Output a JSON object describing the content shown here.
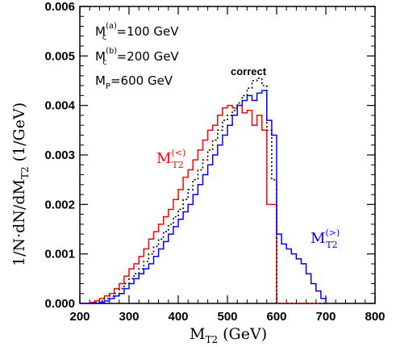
{
  "chart_data": {
    "type": "line",
    "title": "",
    "xlabel": {
      "main": "M",
      "sub": "T2",
      "unit": " (GeV)"
    },
    "ylabel": {
      "main": "1/N·dN/dM",
      "sub": "T2",
      "unit": "  (1/GeV)"
    },
    "xlim": [
      200,
      800
    ],
    "ylim": [
      0,
      0.006
    ],
    "xticks": [
      "200",
      "300",
      "400",
      "500",
      "600",
      "700",
      "800"
    ],
    "yticks": [
      "0.000",
      "0.001",
      "0.002",
      "0.003",
      "0.004",
      "0.005",
      "0.006"
    ],
    "annotations": [
      {
        "main": "M",
        "sup": "(a)",
        "sub": "c",
        "text": "=100  GeV"
      },
      {
        "main": "M",
        "sup": "(b)",
        "sub": "c",
        "text": "=200  GeV"
      },
      {
        "main": "M",
        "sup": "",
        "sub": "P",
        "text": "=600  GeV"
      }
    ],
    "bin_edges": [
      200,
      210,
      220,
      230,
      240,
      250,
      260,
      270,
      280,
      290,
      300,
      310,
      320,
      330,
      340,
      350,
      360,
      370,
      380,
      390,
      400,
      410,
      420,
      430,
      440,
      450,
      460,
      470,
      480,
      490,
      500,
      510,
      520,
      530,
      540,
      550,
      560,
      570,
      580,
      590,
      600,
      610,
      620,
      630,
      640,
      650,
      660,
      670,
      680,
      690,
      700
    ],
    "series": [
      {
        "name": "M_T2^(<)",
        "label": {
          "main": "M",
          "sup": "(<)",
          "sub": "T2"
        },
        "color": "#ff0000",
        "style": "solid",
        "values": [
          0,
          0,
          2e-05,
          5e-05,
          0.0001,
          0.00015,
          0.0002,
          0.0003,
          0.0004,
          0.00055,
          0.0007,
          0.0008,
          0.00095,
          0.0011,
          0.0013,
          0.00145,
          0.0016,
          0.00175,
          0.0019,
          0.0021,
          0.0023,
          0.00255,
          0.0027,
          0.0029,
          0.0031,
          0.0033,
          0.0035,
          0.0036,
          0.0038,
          0.00395,
          0.004,
          0.00395,
          0.004,
          0.00385,
          0.0039,
          0.0036,
          0.0038,
          0.0035,
          0.002,
          0.002,
          0,
          0,
          0,
          0,
          0,
          0,
          0,
          0,
          0,
          0
        ]
      },
      {
        "name": "correct",
        "label": {
          "main": "correct",
          "sup": "",
          "sub": ""
        },
        "color": "#000000",
        "style": "dotted",
        "values": [
          0,
          0,
          0,
          2e-05,
          5e-05,
          0.0001,
          0.00015,
          0.0002,
          0.0003,
          0.0004,
          0.0005,
          0.0006,
          0.0007,
          0.00085,
          0.001,
          0.00115,
          0.0013,
          0.00145,
          0.0016,
          0.00175,
          0.0019,
          0.0021,
          0.0023,
          0.0025,
          0.0027,
          0.0029,
          0.0031,
          0.0033,
          0.0035,
          0.0037,
          0.0038,
          0.0039,
          0.00405,
          0.0042,
          0.00435,
          0.0045,
          0.00455,
          0.0044,
          0.0035,
          0.0025,
          0,
          0,
          0,
          0,
          0,
          0,
          0,
          0,
          0,
          0
        ]
      },
      {
        "name": "M_T2^(>)",
        "label": {
          "main": "M",
          "sup": "(>)",
          "sub": "T2"
        },
        "color": "#0000ff",
        "style": "solid",
        "values": [
          0,
          0,
          0,
          0,
          2e-05,
          5e-05,
          0.0001,
          0.00015,
          0.0002,
          0.0003,
          0.0004,
          0.0005,
          0.0006,
          0.0007,
          0.0008,
          0.00095,
          0.0011,
          0.00125,
          0.0014,
          0.00155,
          0.0017,
          0.00185,
          0.002,
          0.0022,
          0.0024,
          0.0026,
          0.0028,
          0.003,
          0.0032,
          0.0034,
          0.0036,
          0.0038,
          0.004,
          0.0041,
          0.0042,
          0.0041,
          0.00425,
          0.0043,
          0.0037,
          0.0034,
          0.0014,
          0.0012,
          0.0011,
          0.001,
          0.0009,
          0.0008,
          0.0006,
          0.0004,
          0.00025,
          0.0001
        ]
      }
    ]
  }
}
